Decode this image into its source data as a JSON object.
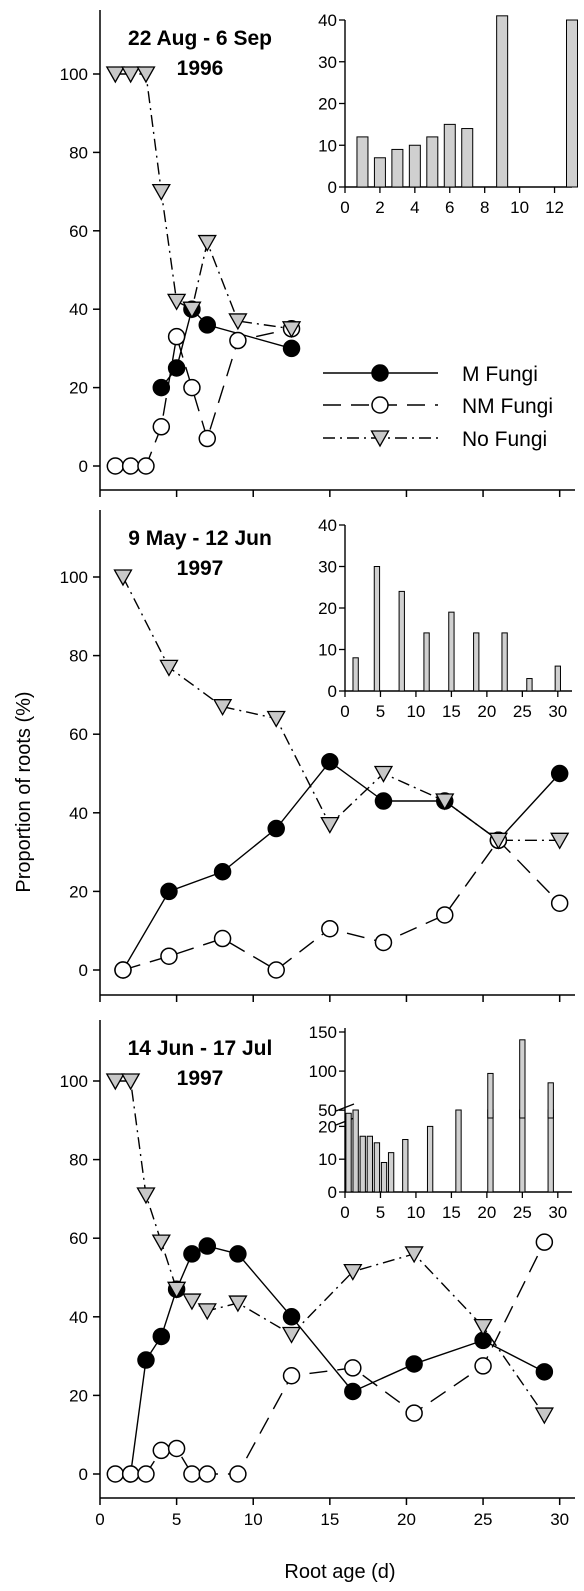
{
  "y_axis_label": "Proportion of roots (%)",
  "x_axis_label": "Root age (d)",
  "legend": [
    {
      "name": "M Fungi",
      "marker": "filled-circle",
      "dash": ""
    },
    {
      "name": "NM Fungi",
      "marker": "open-circle",
      "dash": "18,10"
    },
    {
      "name": "No Fungi",
      "marker": "triangle-down",
      "dash": "12,5,2,5"
    }
  ],
  "colors": {
    "filled": "#000000",
    "open": "#ffffff",
    "triangle": "#c8c8c8",
    "bar": "#d0d0d0"
  },
  "chart_data": [
    {
      "type": "line",
      "title_line1": "22 Aug - 6 Sep",
      "title_line2": "1996",
      "xlim": [
        0,
        31
      ],
      "ylim": [
        0,
        110
      ],
      "yticks": [
        0,
        20,
        40,
        60,
        80,
        100
      ],
      "series": [
        {
          "name": "M Fungi",
          "x": [
            4,
            5,
            6,
            7,
            9,
            12.5
          ],
          "y": [
            20,
            25,
            40,
            36,
            null,
            30
          ]
        },
        {
          "name": "NM Fungi",
          "x": [
            1,
            2,
            3,
            4,
            5,
            6,
            7,
            9,
            12.5
          ],
          "y": [
            0,
            0,
            0,
            10,
            33,
            20,
            7,
            32,
            35
          ]
        },
        {
          "name": "No Fungi",
          "x": [
            1,
            2,
            3,
            4,
            5,
            6,
            7,
            9,
            12.5
          ],
          "y": [
            100,
            100,
            100,
            70,
            42,
            40,
            57,
            37,
            35
          ]
        }
      ],
      "inset": {
        "type": "bar",
        "xlim": [
          0,
          13
        ],
        "xticks": [
          0,
          2,
          4,
          6,
          8,
          10,
          12
        ],
        "ylim": [
          0,
          40
        ],
        "yticks": [
          0,
          10,
          20,
          30,
          40
        ],
        "x": [
          1,
          2,
          3,
          4,
          5,
          6,
          7,
          9,
          13
        ],
        "values": [
          12,
          7,
          9,
          10,
          12,
          15,
          14,
          41,
          40
        ]
      }
    },
    {
      "type": "line",
      "title_line1": "9 May - 12 Jun",
      "title_line2": "1997",
      "xlim": [
        0,
        31
      ],
      "ylim": [
        0,
        110
      ],
      "yticks": [
        0,
        20,
        40,
        60,
        80,
        100
      ],
      "series": [
        {
          "name": "M Fungi",
          "x": [
            1.5,
            4.5,
            8,
            11.5,
            15,
            18.5,
            22.5,
            26,
            30
          ],
          "y": [
            0,
            20,
            25,
            36,
            53,
            43,
            43,
            33,
            50
          ]
        },
        {
          "name": "NM Fungi",
          "x": [
            1.5,
            4.5,
            8,
            11.5,
            15,
            18.5,
            22.5,
            26,
            30
          ],
          "y": [
            0,
            3.5,
            8,
            0,
            10.5,
            7,
            14,
            33,
            17
          ]
        },
        {
          "name": "No Fungi",
          "x": [
            1.5,
            4.5,
            8,
            11.5,
            15,
            18.5,
            22.5,
            26,
            30
          ],
          "y": [
            100,
            77,
            67,
            64,
            37,
            50,
            43,
            33,
            33
          ]
        }
      ],
      "inset": {
        "type": "bar",
        "xlim": [
          0,
          32
        ],
        "xticks": [
          0,
          5,
          10,
          15,
          20,
          25,
          30
        ],
        "ylim": [
          0,
          40
        ],
        "yticks": [
          0,
          10,
          20,
          30,
          40
        ],
        "x": [
          1.5,
          4.5,
          8,
          11.5,
          15,
          18.5,
          22.5,
          26,
          30
        ],
        "values": [
          8,
          30,
          24,
          14,
          19,
          14,
          14,
          3,
          6
        ]
      }
    },
    {
      "type": "line",
      "title_line1": "14 Jun - 17 Jul",
      "title_line2": "1997",
      "xlim": [
        0,
        31
      ],
      "ylim": [
        0,
        110
      ],
      "yticks": [
        0,
        20,
        40,
        60,
        80,
        100
      ],
      "series": [
        {
          "name": "M Fungi",
          "x": [
            1,
            2,
            3,
            4,
            5,
            6,
            7,
            9,
            12.5,
            16.5,
            20.5,
            25,
            29
          ],
          "y": [
            null,
            0,
            29,
            35,
            47,
            56,
            58,
            56,
            40,
            21,
            28,
            34,
            26
          ]
        },
        {
          "name": "NM Fungi",
          "x": [
            1,
            2,
            3,
            4,
            5,
            6,
            7,
            9,
            12.5,
            16.5,
            20.5,
            25,
            29
          ],
          "y": [
            0,
            0,
            0,
            6,
            6.5,
            0,
            0,
            0,
            25,
            27,
            15.5,
            27.5,
            59
          ]
        },
        {
          "name": "No Fungi",
          "x": [
            1,
            2,
            3,
            4,
            5,
            6,
            7,
            9,
            12.5,
            16.5,
            20.5,
            25,
            29
          ],
          "y": [
            100,
            100,
            71,
            59,
            47,
            44,
            41.5,
            43.5,
            35.5,
            51.5,
            56,
            37.5,
            15
          ]
        }
      ],
      "x_ticks_labeled": [
        0,
        5,
        10,
        15,
        20,
        25,
        30
      ],
      "inset": {
        "type": "bar",
        "broken_axis": true,
        "xlim": [
          0,
          32
        ],
        "xticks": [
          0,
          5,
          10,
          15,
          20,
          25,
          30
        ],
        "yticks_lower": [
          0,
          10,
          20
        ],
        "yticks_upper": [
          50,
          100,
          150
        ],
        "x": [
          0.5,
          1.5,
          2.5,
          3.5,
          4.5,
          5.5,
          6.5,
          8.5,
          12,
          16,
          20.5,
          25,
          29
        ],
        "values": [
          24,
          27,
          17,
          17,
          15,
          9,
          12,
          16,
          20,
          37,
          97,
          140,
          85
        ]
      }
    }
  ]
}
